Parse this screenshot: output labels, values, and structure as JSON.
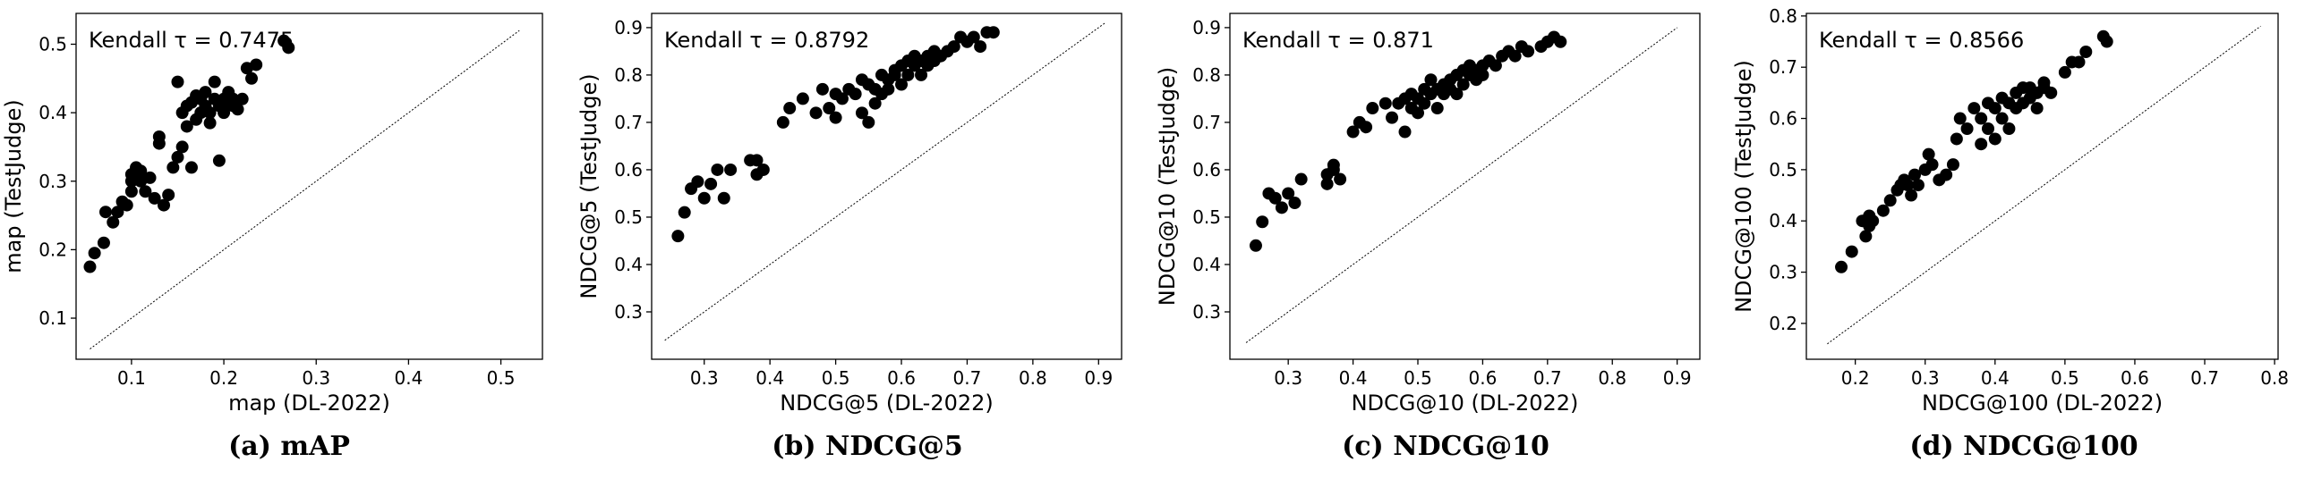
{
  "chart_data": [
    {
      "type": "scatter",
      "kendall_text": "Kendall τ = 0.7475",
      "xlabel": "map (DL-2022)",
      "ylabel": "map (TestJudge)",
      "caption": "(a) mAP",
      "xlim": [
        0.04,
        0.545
      ],
      "ylim": [
        0.04,
        0.545
      ],
      "xticks": [
        0.1,
        0.2,
        0.3,
        0.4,
        0.5
      ],
      "xtick_labels": [
        "0.1",
        "0.2",
        "0.3",
        "0.4",
        "0.5"
      ],
      "yticks": [
        0.1,
        0.2,
        0.3,
        0.4,
        0.5
      ],
      "ytick_labels": [
        "0.1",
        "0.2",
        "0.3",
        "0.4",
        "0.5"
      ],
      "diagonal": [
        0.055,
        0.52
      ],
      "x": [
        0.055,
        0.06,
        0.07,
        0.072,
        0.08,
        0.085,
        0.09,
        0.095,
        0.1,
        0.1,
        0.1,
        0.105,
        0.11,
        0.11,
        0.115,
        0.12,
        0.125,
        0.13,
        0.13,
        0.135,
        0.14,
        0.145,
        0.15,
        0.15,
        0.155,
        0.155,
        0.16,
        0.16,
        0.165,
        0.165,
        0.17,
        0.17,
        0.175,
        0.175,
        0.18,
        0.18,
        0.185,
        0.185,
        0.19,
        0.19,
        0.195,
        0.195,
        0.2,
        0.2,
        0.205,
        0.205,
        0.21,
        0.21,
        0.215,
        0.22,
        0.225,
        0.23,
        0.235,
        0.265,
        0.27
      ],
      "y": [
        0.175,
        0.195,
        0.21,
        0.255,
        0.24,
        0.255,
        0.27,
        0.265,
        0.3,
        0.285,
        0.31,
        0.32,
        0.3,
        0.315,
        0.285,
        0.305,
        0.275,
        0.365,
        0.355,
        0.265,
        0.28,
        0.32,
        0.445,
        0.335,
        0.4,
        0.35,
        0.38,
        0.41,
        0.415,
        0.32,
        0.425,
        0.39,
        0.4,
        0.42,
        0.43,
        0.41,
        0.385,
        0.4,
        0.445,
        0.42,
        0.41,
        0.33,
        0.4,
        0.42,
        0.43,
        0.415,
        0.42,
        0.41,
        0.405,
        0.42,
        0.465,
        0.45,
        0.47,
        0.505,
        0.495
      ]
    },
    {
      "type": "scatter",
      "kendall_text": "Kendall τ = 0.8792",
      "xlabel": "NDCG@5 (DL-2022)",
      "ylabel": "NDCG@5 (TestJudge)",
      "caption": "(b) NDCG@5",
      "xlim": [
        0.22,
        0.935
      ],
      "ylim": [
        0.2,
        0.93
      ],
      "xticks": [
        0.3,
        0.4,
        0.5,
        0.6,
        0.7,
        0.8,
        0.9
      ],
      "xtick_labels": [
        "0.3",
        "0.4",
        "0.5",
        "0.6",
        "0.7",
        "0.8",
        "0.9"
      ],
      "yticks": [
        0.3,
        0.4,
        0.5,
        0.6,
        0.7,
        0.8,
        0.9
      ],
      "ytick_labels": [
        "0.3",
        "0.4",
        "0.5",
        "0.6",
        "0.7",
        "0.8",
        "0.9"
      ],
      "diagonal": [
        0.24,
        0.91
      ],
      "x": [
        0.26,
        0.27,
        0.28,
        0.29,
        0.3,
        0.31,
        0.32,
        0.33,
        0.34,
        0.37,
        0.38,
        0.38,
        0.39,
        0.42,
        0.43,
        0.45,
        0.47,
        0.48,
        0.49,
        0.5,
        0.5,
        0.51,
        0.52,
        0.53,
        0.54,
        0.54,
        0.55,
        0.55,
        0.56,
        0.56,
        0.57,
        0.57,
        0.58,
        0.58,
        0.59,
        0.59,
        0.6,
        0.6,
        0.61,
        0.61,
        0.62,
        0.62,
        0.63,
        0.63,
        0.64,
        0.64,
        0.65,
        0.65,
        0.66,
        0.67,
        0.68,
        0.69,
        0.7,
        0.71,
        0.72,
        0.73,
        0.74
      ],
      "y": [
        0.46,
        0.51,
        0.56,
        0.575,
        0.54,
        0.57,
        0.6,
        0.54,
        0.6,
        0.62,
        0.59,
        0.62,
        0.6,
        0.7,
        0.73,
        0.75,
        0.72,
        0.77,
        0.73,
        0.76,
        0.71,
        0.75,
        0.77,
        0.76,
        0.72,
        0.79,
        0.7,
        0.78,
        0.74,
        0.77,
        0.76,
        0.8,
        0.79,
        0.77,
        0.81,
        0.8,
        0.82,
        0.78,
        0.83,
        0.8,
        0.84,
        0.82,
        0.83,
        0.8,
        0.84,
        0.82,
        0.83,
        0.85,
        0.84,
        0.85,
        0.86,
        0.88,
        0.87,
        0.88,
        0.86,
        0.89,
        0.89
      ]
    },
    {
      "type": "scatter",
      "kendall_text": "Kendall τ = 0.871",
      "xlabel": "NDCG@10 (DL-2022)",
      "ylabel": "NDCG@10 (TestJudge)",
      "caption": "(c) NDCG@10",
      "xlim": [
        0.21,
        0.935
      ],
      "ylim": [
        0.2,
        0.93
      ],
      "xticks": [
        0.3,
        0.4,
        0.5,
        0.6,
        0.7,
        0.8,
        0.9
      ],
      "xtick_labels": [
        "0.3",
        "0.4",
        "0.5",
        "0.6",
        "0.7",
        "0.8",
        "0.9"
      ],
      "yticks": [
        0.3,
        0.4,
        0.5,
        0.6,
        0.7,
        0.8,
        0.9
      ],
      "ytick_labels": [
        "0.3",
        "0.4",
        "0.5",
        "0.6",
        "0.7",
        "0.8",
        "0.9"
      ],
      "diagonal": [
        0.235,
        0.9
      ],
      "x": [
        0.25,
        0.26,
        0.27,
        0.28,
        0.29,
        0.3,
        0.31,
        0.32,
        0.36,
        0.37,
        0.38,
        0.36,
        0.37,
        0.4,
        0.41,
        0.42,
        0.43,
        0.45,
        0.46,
        0.47,
        0.48,
        0.48,
        0.49,
        0.49,
        0.5,
        0.5,
        0.51,
        0.51,
        0.52,
        0.52,
        0.53,
        0.53,
        0.54,
        0.54,
        0.55,
        0.55,
        0.56,
        0.56,
        0.57,
        0.57,
        0.58,
        0.58,
        0.59,
        0.59,
        0.6,
        0.6,
        0.61,
        0.62,
        0.63,
        0.64,
        0.65,
        0.66,
        0.67,
        0.69,
        0.7,
        0.71,
        0.72
      ],
      "y": [
        0.44,
        0.49,
        0.55,
        0.54,
        0.52,
        0.55,
        0.53,
        0.58,
        0.59,
        0.61,
        0.58,
        0.57,
        0.6,
        0.68,
        0.7,
        0.69,
        0.73,
        0.74,
        0.71,
        0.74,
        0.75,
        0.68,
        0.73,
        0.76,
        0.75,
        0.72,
        0.77,
        0.74,
        0.76,
        0.79,
        0.73,
        0.77,
        0.78,
        0.76,
        0.79,
        0.77,
        0.8,
        0.76,
        0.81,
        0.78,
        0.8,
        0.82,
        0.81,
        0.79,
        0.82,
        0.8,
        0.83,
        0.82,
        0.84,
        0.85,
        0.84,
        0.86,
        0.85,
        0.86,
        0.87,
        0.88,
        0.87
      ]
    },
    {
      "type": "scatter",
      "kendall_text": "Kendall τ = 0.8566",
      "xlabel": "NDCG@100 (DL-2022)",
      "ylabel": "NDCG@100 (TestJudge)",
      "caption": "(d) NDCG@100",
      "xlim": [
        0.13,
        0.805
      ],
      "ylim": [
        0.13,
        0.805
      ],
      "xticks": [
        0.2,
        0.3,
        0.4,
        0.5,
        0.6,
        0.7,
        0.8
      ],
      "xtick_labels": [
        "0.2",
        "0.3",
        "0.4",
        "0.5",
        "0.6",
        "0.7",
        "0.8"
      ],
      "yticks": [
        0.2,
        0.3,
        0.4,
        0.5,
        0.6,
        0.7,
        0.8
      ],
      "ytick_labels": [
        "0.2",
        "0.3",
        "0.4",
        "0.5",
        "0.6",
        "0.7",
        "0.8"
      ],
      "diagonal": [
        0.16,
        0.78
      ],
      "x": [
        0.18,
        0.195,
        0.21,
        0.215,
        0.22,
        0.22,
        0.225,
        0.24,
        0.25,
        0.26,
        0.265,
        0.27,
        0.275,
        0.28,
        0.285,
        0.29,
        0.3,
        0.305,
        0.31,
        0.32,
        0.33,
        0.34,
        0.345,
        0.35,
        0.36,
        0.37,
        0.38,
        0.38,
        0.39,
        0.39,
        0.4,
        0.4,
        0.41,
        0.41,
        0.42,
        0.42,
        0.43,
        0.43,
        0.44,
        0.44,
        0.45,
        0.45,
        0.46,
        0.46,
        0.47,
        0.47,
        0.48,
        0.5,
        0.51,
        0.52,
        0.53,
        0.555,
        0.56
      ],
      "y": [
        0.31,
        0.34,
        0.4,
        0.37,
        0.41,
        0.39,
        0.4,
        0.42,
        0.44,
        0.46,
        0.47,
        0.48,
        0.47,
        0.45,
        0.49,
        0.47,
        0.5,
        0.53,
        0.51,
        0.48,
        0.49,
        0.51,
        0.56,
        0.6,
        0.58,
        0.62,
        0.6,
        0.55,
        0.63,
        0.58,
        0.62,
        0.56,
        0.64,
        0.6,
        0.63,
        0.58,
        0.65,
        0.62,
        0.66,
        0.63,
        0.64,
        0.66,
        0.65,
        0.62,
        0.66,
        0.67,
        0.65,
        0.69,
        0.71,
        0.71,
        0.73,
        0.76,
        0.75
      ]
    }
  ]
}
